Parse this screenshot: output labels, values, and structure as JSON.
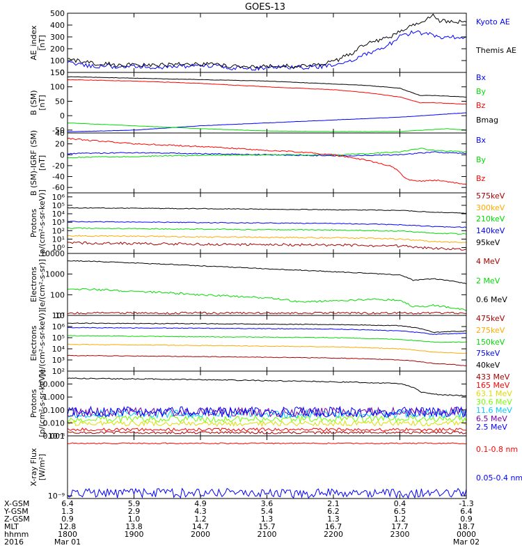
{
  "title": "GOES-13",
  "colors": {
    "black": "#000000",
    "blue": "#0000ff",
    "red": "#ff0000",
    "green": "#00dd00",
    "orange": "#ffaa00",
    "darkred": "#aa0000",
    "cyan": "#00ccff",
    "purple": "#7700aa",
    "lime": "#77ff00",
    "yellow": "#dddd00"
  },
  "chart_data": [
    {
      "type": "line",
      "ylabel": "AE_index [nT]",
      "ylim": [
        0,
        500
      ],
      "ticks": [
        {
          "v": 0,
          "t": "0"
        },
        {
          "v": 100,
          "t": "100"
        },
        {
          "v": 200,
          "t": "200"
        },
        {
          "v": 300,
          "t": "300"
        },
        {
          "v": 400,
          "t": "400"
        },
        {
          "v": 500,
          "t": "500"
        }
      ],
      "series": [
        {
          "name": "Kyoto AE",
          "color": "blue",
          "x": [
            0,
            0.2,
            0.4,
            0.6,
            0.75,
            0.9,
            1.0,
            1.4,
            1.6,
            2.2,
            2.4,
            2.8,
            3.2,
            3.6,
            4.0,
            4.3,
            4.5,
            4.8,
            5.0,
            5.2,
            5.5,
            5.6,
            5.8,
            6.0
          ],
          "y": [
            80,
            70,
            50,
            60,
            40,
            55,
            50,
            45,
            50,
            55,
            40,
            35,
            45,
            40,
            60,
            100,
            160,
            220,
            300,
            340,
            320,
            300,
            300,
            290
          ],
          "noise": 18
        },
        {
          "name": "Themis AE",
          "color": "black",
          "x": [
            0,
            0.2,
            0.4,
            0.6,
            0.75,
            0.9,
            1.0,
            1.4,
            1.6,
            2.2,
            2.4,
            2.8,
            3.2,
            3.6,
            4.0,
            4.3,
            4.5,
            4.8,
            5.0,
            5.2,
            5.5,
            5.6,
            5.8,
            6.0
          ],
          "y": [
            110,
            95,
            70,
            80,
            55,
            65,
            60,
            60,
            70,
            70,
            55,
            45,
            55,
            50,
            90,
            170,
            250,
            290,
            340,
            400,
            480,
            440,
            430,
            420
          ],
          "noise": 18
        }
      ]
    },
    {
      "type": "line",
      "ylabel": "B (SM) [nT]",
      "ylim": [
        -60,
        150
      ],
      "ticks": [
        {
          "v": -50,
          "t": "-50"
        },
        {
          "v": 0,
          "t": "0"
        },
        {
          "v": 50,
          "t": "50"
        },
        {
          "v": 100,
          "t": "100"
        },
        {
          "v": 150,
          "t": "150"
        }
      ],
      "series": [
        {
          "name": "Bx",
          "color": "blue",
          "x": [
            0,
            1,
            2,
            3,
            4,
            5,
            6
          ],
          "y": [
            -56,
            -50,
            -35,
            -25,
            -15,
            -5,
            10
          ],
          "noise": 0.5
        },
        {
          "name": "By",
          "color": "green",
          "x": [
            0,
            1,
            2,
            3,
            4,
            5,
            5.5,
            5.7,
            6
          ],
          "y": [
            -25,
            -35,
            -45,
            -53,
            -55,
            -55,
            -48,
            -45,
            -50
          ],
          "noise": 0.5
        },
        {
          "name": "Bz",
          "color": "red",
          "x": [
            0,
            1,
            2,
            3,
            4,
            4.5,
            5,
            5.3,
            5.5,
            6
          ],
          "y": [
            125,
            120,
            112,
            100,
            90,
            80,
            65,
            45,
            45,
            40
          ],
          "noise": 0.7
        },
        {
          "name": "Bmag",
          "color": "black",
          "x": [
            0,
            1,
            2,
            3,
            4,
            4.5,
            5,
            5.3,
            5.5,
            6
          ],
          "y": [
            135,
            130,
            125,
            120,
            110,
            105,
            95,
            70,
            70,
            65
          ],
          "noise": 0.7
        }
      ]
    },
    {
      "type": "line",
      "ylabel": "B (SM)-IGRF (SM) [nT]",
      "ylim": [
        -70,
        40
      ],
      "ticks": [
        {
          "v": -60,
          "t": "-60"
        },
        {
          "v": -40,
          "t": "-40"
        },
        {
          "v": -20,
          "t": "-20"
        },
        {
          "v": 0,
          "t": "0"
        },
        {
          "v": 20,
          "t": "20"
        },
        {
          "v": 40,
          "t": "40"
        }
      ],
      "series": [
        {
          "name": "Bx",
          "color": "blue",
          "x": [
            0,
            1,
            2,
            3,
            4,
            4.5,
            5,
            5.5,
            6
          ],
          "y": [
            2,
            4,
            2,
            0,
            -2,
            -1,
            0,
            5,
            2
          ],
          "noise": 1
        },
        {
          "name": "By",
          "color": "green",
          "x": [
            0,
            1,
            2,
            3,
            4,
            4.5,
            5,
            5.3,
            5.5,
            6
          ],
          "y": [
            -5,
            -3,
            -1,
            0,
            0,
            2,
            5,
            12,
            8,
            5
          ],
          "noise": 1
        },
        {
          "name": "Bz",
          "color": "red",
          "x": [
            0,
            0.5,
            1,
            1.5,
            2,
            2.5,
            3,
            3.5,
            4,
            4.5,
            4.9,
            5.1,
            5.3,
            5.6,
            6
          ],
          "y": [
            30,
            25,
            20,
            18,
            15,
            12,
            8,
            5,
            0,
            -10,
            -22,
            -45,
            -48,
            -47,
            -55
          ],
          "noise": 1.2
        }
      ]
    },
    {
      "type": "line",
      "ylabel": "Protons [p/(cm²-s-sr-keV)]",
      "log": true,
      "ylim": [
        0.2,
        3000000
      ],
      "ticks": [
        {
          "v": 1,
          "t": "10⁰"
        },
        {
          "v": 10,
          "t": "10¹"
        },
        {
          "v": 100,
          "t": "10²"
        },
        {
          "v": 1000,
          "t": "10³"
        },
        {
          "v": 10000,
          "t": "10⁴"
        },
        {
          "v": 100000,
          "t": "10⁵"
        },
        {
          "v": 1000000,
          "t": "10⁶"
        }
      ],
      "series": [
        {
          "name": "575keV",
          "color": "darkred",
          "x": [
            0,
            2,
            4,
            5,
            5.5,
            6
          ],
          "y": [
            3.5,
            2.5,
            2.0,
            1.5,
            0.8,
            0.6
          ],
          "noise": 0.15
        },
        {
          "name": "300keV",
          "color": "orange",
          "x": [
            0,
            2,
            4,
            5,
            5.5,
            6
          ],
          "y": [
            25,
            18,
            14,
            10,
            5,
            4
          ],
          "noise": 0.08
        },
        {
          "name": "210keV",
          "color": "green",
          "x": [
            0,
            2,
            4,
            5,
            5.5,
            6
          ],
          "y": [
            200,
            150,
            120,
            90,
            50,
            40
          ],
          "noise": 0.06
        },
        {
          "name": "140keV",
          "color": "blue",
          "x": [
            0,
            2,
            4,
            5,
            5.5,
            6
          ],
          "y": [
            1200,
            900,
            700,
            500,
            300,
            250
          ],
          "noise": 0.05
        },
        {
          "name": "95keV",
          "color": "black",
          "x": [
            0,
            2,
            4,
            5,
            5.5,
            6
          ],
          "y": [
            50000,
            40000,
            30000,
            25000,
            15000,
            12000
          ],
          "noise": 0.04
        }
      ]
    },
    {
      "type": "line",
      "ylabel": "Electrons [e/(cm²-s-sr)]",
      "log": true,
      "ylim": [
        10,
        10000
      ],
      "ticks": [
        {
          "v": 10,
          "t": "10"
        },
        {
          "v": 100,
          "t": "100"
        },
        {
          "v": 1000,
          "t": "1000"
        },
        {
          "v": 10000,
          "t": "10000"
        }
      ],
      "series": [
        {
          "name": "4 MeV",
          "color": "darkred",
          "x": [
            0,
            6
          ],
          "y": [
            13,
            13
          ],
          "noise": 0.05
        },
        {
          "name": "2 MeV",
          "color": "green",
          "x": [
            0,
            1,
            2,
            3,
            3.5,
            4,
            4.5,
            5,
            5.2,
            5.5,
            6
          ],
          "y": [
            200,
            150,
            100,
            70,
            45,
            50,
            60,
            55,
            25,
            30,
            18
          ],
          "noise": 0.05
        },
        {
          "name": "0.6 MeV",
          "color": "black",
          "x": [
            0,
            1,
            2,
            3,
            4,
            4.5,
            5,
            5.2,
            5.5,
            6
          ],
          "y": [
            4500,
            3500,
            2500,
            1800,
            1300,
            1100,
            900,
            500,
            600,
            350
          ],
          "noise": 0.02
        }
      ]
    },
    {
      "type": "line",
      "ylabel": "Electrons [e/(cm²-s-sr-keV)]",
      "log": true,
      "ylim": [
        100,
        10000000
      ],
      "ticks": [
        {
          "v": 100,
          "t": "10²"
        },
        {
          "v": 1000,
          "t": "10³"
        },
        {
          "v": 10000,
          "t": "10⁴"
        },
        {
          "v": 100000,
          "t": "10⁵"
        },
        {
          "v": 1000000,
          "t": "10⁶"
        },
        {
          "v": 10000000,
          "t": "10⁷"
        }
      ],
      "series": [
        {
          "name": "475keV",
          "color": "darkred",
          "x": [
            0,
            2,
            4,
            5,
            5.5,
            6
          ],
          "y": [
            2500,
            2000,
            1500,
            1000,
            500,
            300
          ],
          "noise": 0.03
        },
        {
          "name": "275keV",
          "color": "orange",
          "x": [
            0,
            2,
            4,
            5,
            5.5,
            6
          ],
          "y": [
            25000,
            20000,
            15000,
            10000,
            5000,
            4000
          ],
          "noise": 0.03
        },
        {
          "name": "150keV",
          "color": "green",
          "x": [
            0,
            2,
            4,
            5,
            5.5,
            6
          ],
          "y": [
            150000,
            120000,
            100000,
            70000,
            40000,
            40000
          ],
          "noise": 0.03
        },
        {
          "name": "75keV",
          "color": "blue",
          "x": [
            0,
            2,
            4,
            5,
            5.5,
            6
          ],
          "y": [
            800000,
            700000,
            600000,
            400000,
            200000,
            250000
          ],
          "noise": 0.03
        },
        {
          "name": "40keV",
          "color": "black",
          "x": [
            0,
            2,
            4,
            5,
            5.5,
            6
          ],
          "y": [
            2000000,
            1800000,
            1500000,
            1200000,
            300000,
            400000
          ],
          "noise": 0.03
        }
      ]
    },
    {
      "type": "line",
      "ylabel": "Protons [p/(cm²-s-sr-keV)]",
      "log": true,
      "ylim": [
        0.001,
        100
      ],
      "ticks": [
        {
          "v": 0.001,
          "t": "0.001"
        },
        {
          "v": 0.01,
          "t": "0.010"
        },
        {
          "v": 0.1,
          "t": "0.100"
        },
        {
          "v": 1,
          "t": "1.000"
        },
        {
          "v": 10,
          "t": "10.000"
        }
      ],
      "series": [
        {
          "name": "433 MeV",
          "color": "darkred",
          "x": [
            0,
            6
          ],
          "y": [
            0.0018,
            0.0018
          ],
          "noise": 0.1
        },
        {
          "name": "165 MeV",
          "color": "red",
          "x": [
            0,
            6
          ],
          "y": [
            0.003,
            0.003
          ],
          "noise": 0.12
        },
        {
          "name": "63.1 MeV",
          "color": "yellow",
          "x": [
            0,
            6
          ],
          "y": [
            0.009,
            0.009
          ],
          "noise": 0.2
        },
        {
          "name": "30.6 MeV",
          "color": "lime",
          "x": [
            0,
            6
          ],
          "y": [
            0.02,
            0.02
          ],
          "noise": 0.25
        },
        {
          "name": "11.6 MeV",
          "color": "cyan",
          "x": [
            0,
            6
          ],
          "y": [
            0.05,
            0.05
          ],
          "noise": 0.3
        },
        {
          "name": "6.5 MeV",
          "color": "purple",
          "x": [
            0,
            6
          ],
          "y": [
            0.07,
            0.07
          ],
          "noise": 0.35
        },
        {
          "name": "2.5 MeV",
          "color": "blue",
          "x": [
            0,
            6
          ],
          "y": [
            0.07,
            0.07
          ],
          "noise": 0.4
        },
        {
          "name": "",
          "color": "black",
          "x": [
            0,
            1,
            2,
            3,
            4,
            4.5,
            5,
            5.3,
            5.6,
            6
          ],
          "y": [
            28,
            25,
            22,
            18,
            15,
            13,
            11,
            2.5,
            1.5,
            1.2
          ],
          "noise": 0.04
        }
      ]
    },
    {
      "type": "line",
      "ylabel": "X-ray Flux [W/m²]",
      "log": true,
      "ylim": [
        9e-10,
        1e-08
      ],
      "ticks": [
        {
          "v": 1e-09,
          "t": "10⁻⁹"
        },
        {
          "v": 1e-08,
          "t": "10⁻⁸"
        }
      ],
      "series": [
        {
          "name": "0.1-0.8 nm",
          "color": "red",
          "x": [
            0,
            6
          ],
          "y": [
            7.5e-09,
            7.5e-09
          ],
          "noise": 0.01
        },
        {
          "name": "0.05-0.4 nm",
          "color": "blue",
          "x": [
            0,
            6
          ],
          "y": [
            1.1e-09,
            1.1e-09
          ],
          "noise": 0.08
        }
      ]
    }
  ],
  "xaxis": {
    "columns": [
      {
        "x": 0,
        "vals": [
          "6.4",
          "1.3",
          "0.9",
          "12.8",
          "1800",
          "Mar 01"
        ]
      },
      {
        "x": 1,
        "vals": [
          "5.9",
          "2.9",
          "1.0",
          "13.8",
          "1900",
          ""
        ]
      },
      {
        "x": 2,
        "vals": [
          "4.9",
          "4.3",
          "1.2",
          "14.7",
          "2000",
          ""
        ]
      },
      {
        "x": 3,
        "vals": [
          "3.6",
          "5.4",
          "1.3",
          "15.7",
          "2100",
          ""
        ]
      },
      {
        "x": 4,
        "vals": [
          "2.1",
          "6.2",
          "1.3",
          "16.7",
          "2200",
          ""
        ]
      },
      {
        "x": 5,
        "vals": [
          "0.4",
          "6.5",
          "1.2",
          "17.7",
          "2300",
          ""
        ]
      },
      {
        "x": 6,
        "vals": [
          "-1.3",
          "6.4",
          "0.9",
          "18.7",
          "0000",
          "Mar 02"
        ]
      }
    ],
    "row_labels": [
      "X-GSM",
      "Y-GSM",
      "Z-GSM",
      "MLT",
      "hhmm",
      "2016"
    ]
  }
}
